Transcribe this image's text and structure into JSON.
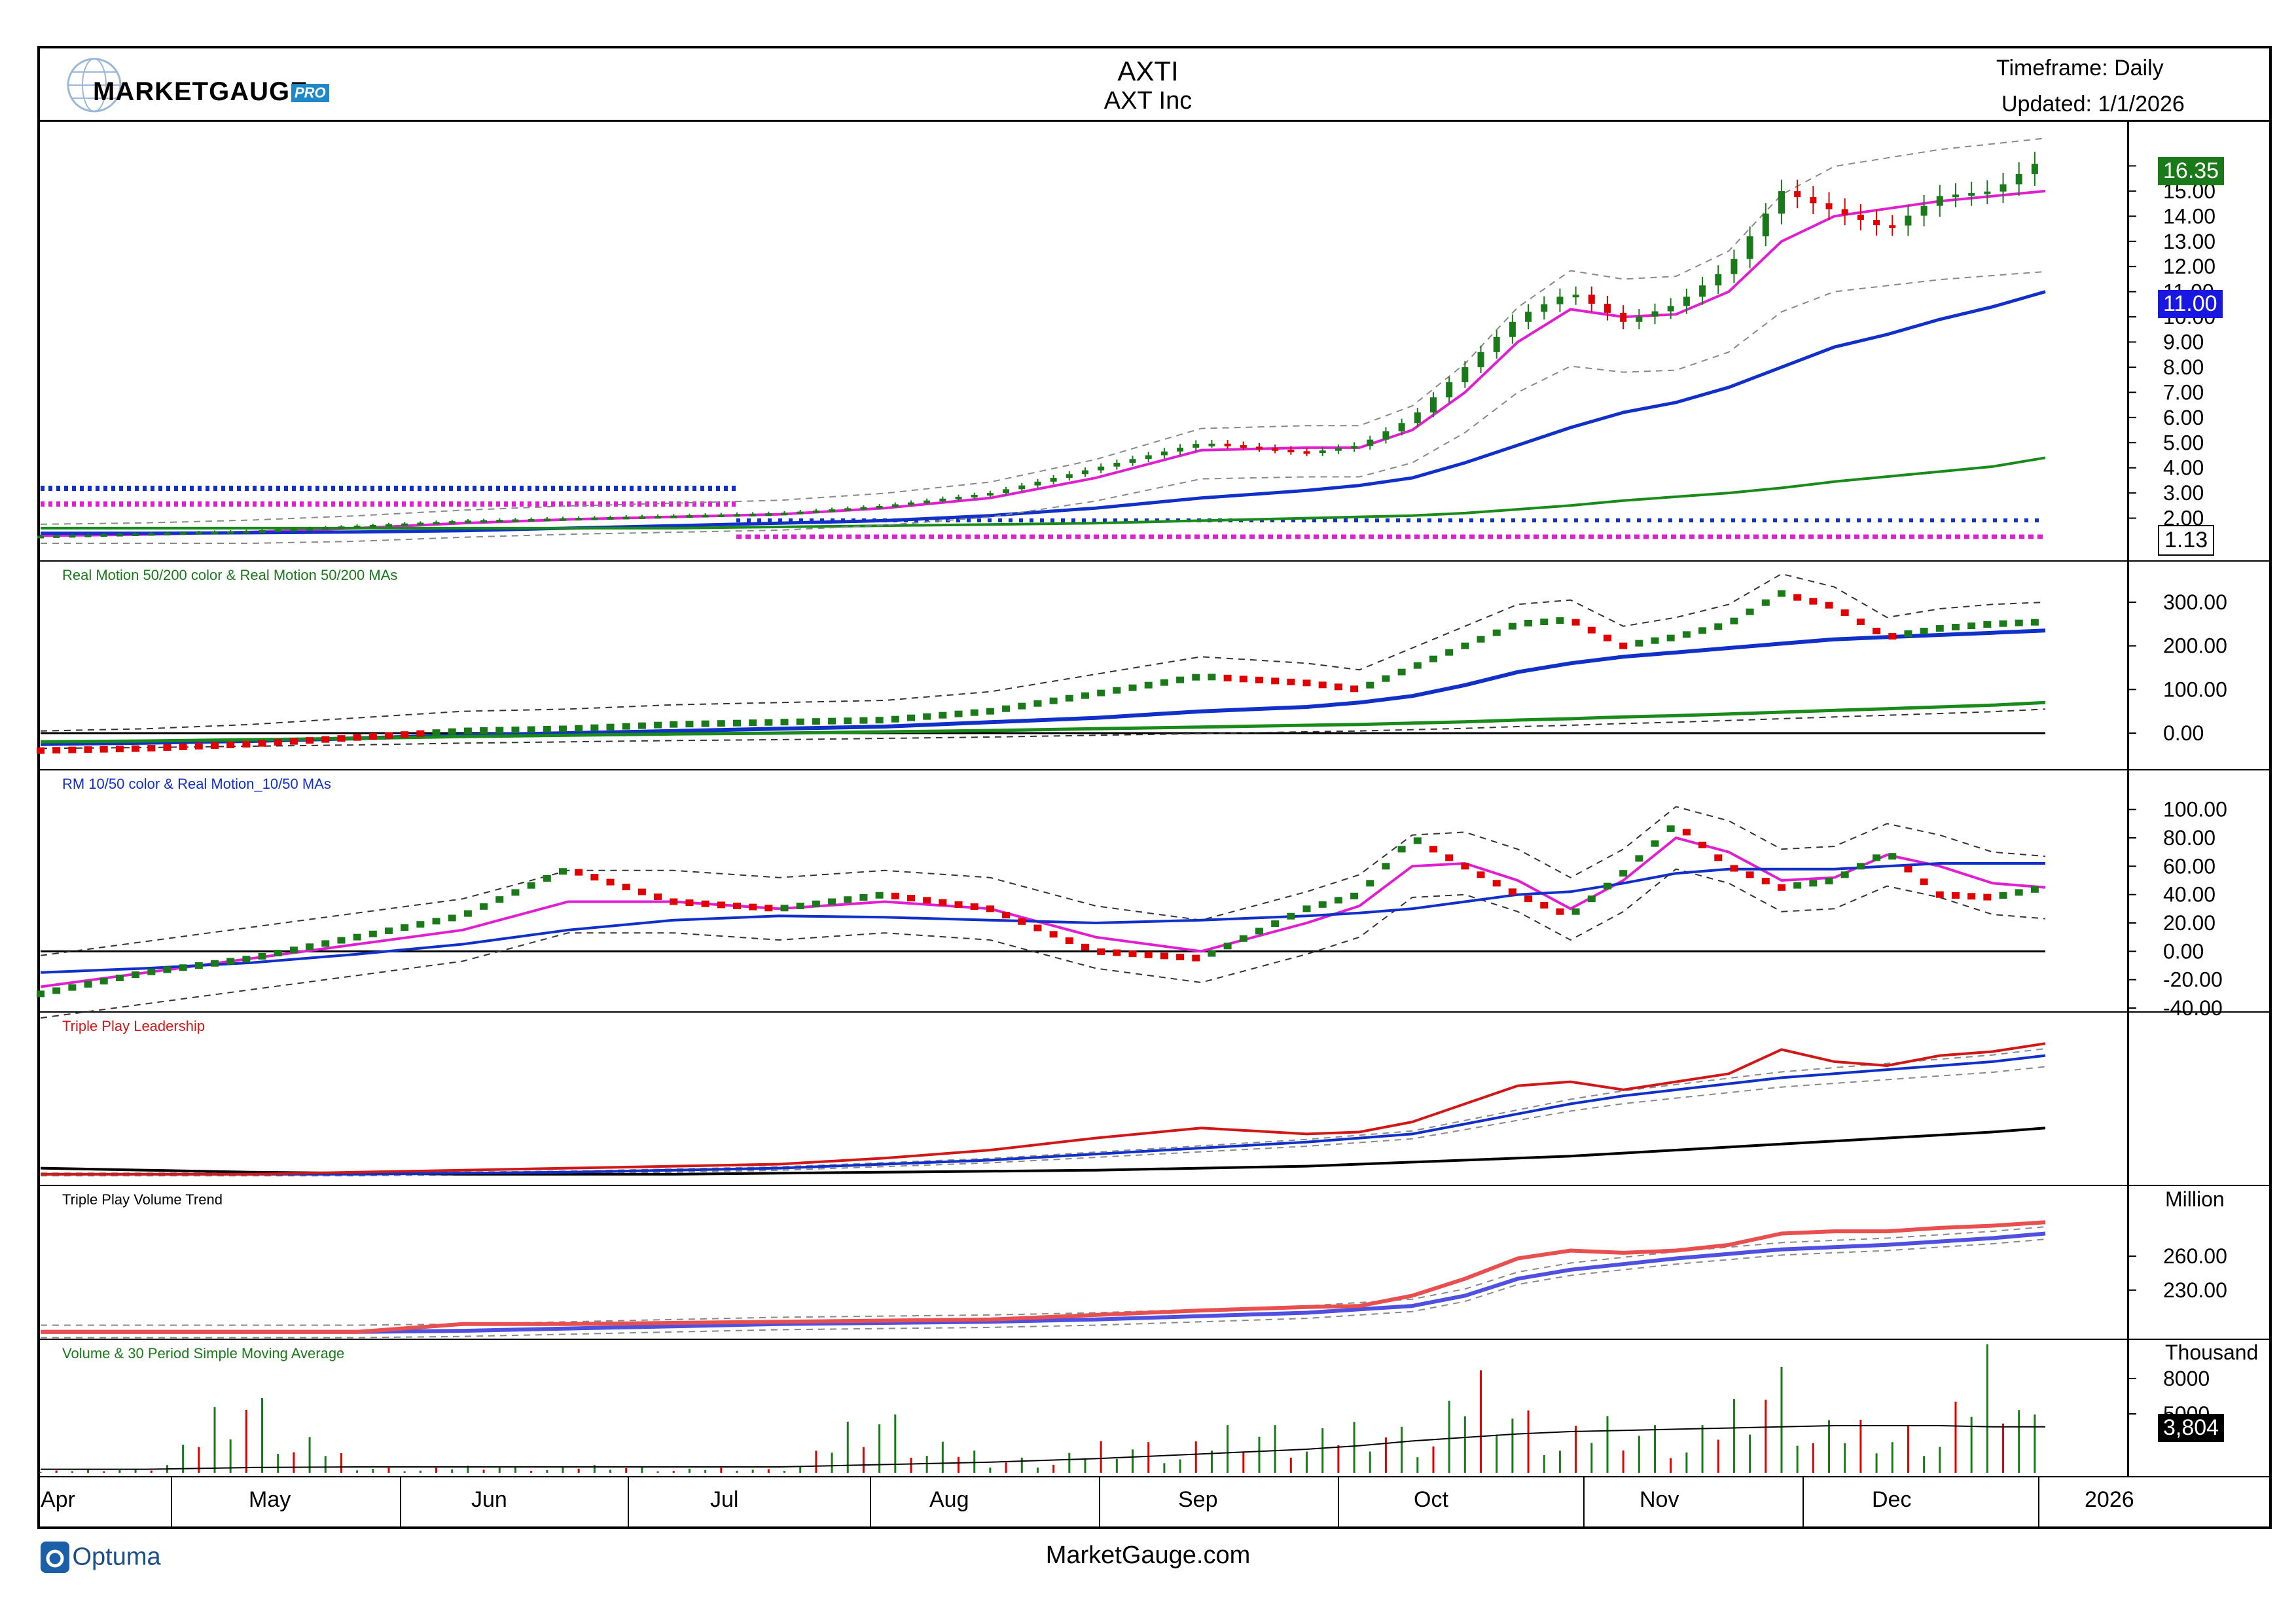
{
  "header": {
    "ticker": "AXTI",
    "company": "AXT Inc",
    "timeframe": "Timeframe: Daily",
    "updated": "Updated: 1/1/2026",
    "logo_market": "MARKETGAUGE",
    "logo_pro": "PRO"
  },
  "footer": {
    "site": "MarketGauge.com",
    "optuma": "Optuma"
  },
  "colors": {
    "up": "#1a7a1a",
    "down": "#e00000",
    "ma_pink": "#e020d0",
    "ma_blue": "#1030c8",
    "ma_green": "#1a8a1a",
    "tp_red": "#d01818",
    "vol_red": "#e85050",
    "vol_blue": "#5050e0"
  },
  "x_axis": {
    "months": [
      "Apr",
      "May",
      "Jun",
      "Jul",
      "Aug",
      "Sep",
      "Oct",
      "Nov",
      "Dec",
      "2026"
    ]
  },
  "chart_data": [
    {
      "type": "line",
      "name": "price",
      "subtype": "candlestick",
      "yticks": [
        "16.00",
        "15.00",
        "14.00",
        "13.00",
        "12.00",
        "11.00",
        "10.00",
        "9.00",
        "8.00",
        "7.00",
        "6.00",
        "5.00",
        "4.00",
        "3.00",
        "2.00"
      ],
      "ylim": [
        1.0,
        17.0
      ],
      "badges": {
        "last": "16.35",
        "ma": "11.00",
        "low": "1.13"
      },
      "x": [
        0,
        10,
        20,
        30,
        40,
        50,
        60,
        70,
        80,
        90,
        100,
        110,
        120,
        125,
        130,
        135,
        140,
        145,
        150,
        155,
        160,
        165,
        170,
        175,
        180,
        185,
        190
      ],
      "close": [
        1.3,
        1.4,
        1.5,
        1.7,
        1.9,
        2.0,
        2.1,
        2.2,
        2.5,
        3.0,
        4.0,
        5.0,
        4.6,
        4.9,
        6.0,
        8.0,
        10.0,
        11.0,
        9.8,
        10.5,
        12.0,
        15.0,
        14.2,
        13.5,
        14.8,
        15.0,
        16.35
      ],
      "series": [
        {
          "name": "10 MA",
          "values": [
            1.3,
            1.35,
            1.45,
            1.6,
            1.8,
            1.95,
            2.05,
            2.15,
            2.4,
            2.8,
            3.6,
            4.7,
            4.8,
            4.8,
            5.5,
            7.0,
            9.0,
            10.3,
            10.0,
            10.1,
            11.0,
            13.0,
            14.0,
            14.3,
            14.6,
            14.8,
            15.0
          ]
        },
        {
          "name": "50 MA",
          "values": [
            1.4,
            1.4,
            1.42,
            1.45,
            1.5,
            1.6,
            1.7,
            1.8,
            1.9,
            2.1,
            2.4,
            2.8,
            3.1,
            3.3,
            3.6,
            4.2,
            4.9,
            5.6,
            6.2,
            6.6,
            7.2,
            8.0,
            8.8,
            9.3,
            9.9,
            10.4,
            11.0
          ]
        },
        {
          "name": "200 MA",
          "values": [
            1.6,
            1.6,
            1.6,
            1.6,
            1.6,
            1.6,
            1.6,
            1.65,
            1.7,
            1.75,
            1.8,
            1.9,
            2.0,
            2.05,
            2.1,
            2.2,
            2.35,
            2.5,
            2.7,
            2.85,
            3.0,
            3.2,
            3.45,
            3.65,
            3.85,
            4.05,
            4.4
          ]
        }
      ]
    },
    {
      "type": "line",
      "name": "Real Motion 50/200 color & Real Motion 50/200 MAs",
      "yticks": [
        "300.00",
        "200.00",
        "100.00",
        "0.00"
      ],
      "ylim": [
        -60,
        360
      ],
      "x": [
        0,
        10,
        20,
        30,
        40,
        50,
        60,
        70,
        80,
        90,
        100,
        110,
        120,
        125,
        130,
        135,
        140,
        145,
        150,
        155,
        160,
        165,
        170,
        175,
        180,
        185,
        190
      ],
      "series": [
        {
          "name": "Real Motion",
          "values": [
            -40,
            -35,
            -25,
            -10,
            5,
            10,
            20,
            25,
            30,
            50,
            90,
            130,
            115,
            100,
            150,
            200,
            250,
            260,
            200,
            220,
            250,
            320,
            290,
            220,
            240,
            250,
            255
          ]
        },
        {
          "name": "50 MA",
          "values": [
            -25,
            -22,
            -18,
            -12,
            -5,
            0,
            5,
            10,
            15,
            25,
            35,
            50,
            60,
            70,
            85,
            110,
            140,
            160,
            175,
            185,
            195,
            205,
            215,
            220,
            225,
            230,
            235
          ]
        },
        {
          "name": "200 MA",
          "values": [
            -20,
            -18,
            -15,
            -12,
            -8,
            -5,
            -2,
            0,
            3,
            6,
            10,
            14,
            18,
            20,
            23,
            26,
            30,
            33,
            37,
            40,
            44,
            48,
            52,
            56,
            60,
            64,
            70
          ]
        }
      ]
    },
    {
      "type": "line",
      "name": "RM 10/50 color & Real Motion_10/50 MAs",
      "yticks": [
        "100.00",
        "80.00",
        "60.00",
        "40.00",
        "20.00",
        "0.00",
        "-20.00",
        "-40.00"
      ],
      "ylim": [
        -40,
        110
      ],
      "x": [
        0,
        10,
        20,
        30,
        40,
        50,
        60,
        70,
        80,
        90,
        100,
        110,
        120,
        125,
        130,
        135,
        140,
        145,
        150,
        155,
        160,
        165,
        170,
        175,
        180,
        185,
        190
      ],
      "series": [
        {
          "name": "RM 10/50",
          "values": [
            -30,
            -15,
            -5,
            10,
            25,
            58,
            35,
            30,
            40,
            30,
            0,
            -5,
            30,
            40,
            80,
            60,
            40,
            25,
            55,
            90,
            60,
            45,
            50,
            70,
            40,
            38,
            45
          ]
        },
        {
          "name": "10 MA",
          "values": [
            -25,
            -15,
            -5,
            5,
            15,
            35,
            35,
            30,
            35,
            30,
            10,
            0,
            20,
            32,
            60,
            62,
            50,
            30,
            50,
            80,
            70,
            50,
            52,
            68,
            60,
            48,
            45
          ]
        },
        {
          "name": "50 MA",
          "values": [
            -15,
            -12,
            -8,
            -2,
            5,
            15,
            22,
            25,
            24,
            22,
            20,
            22,
            25,
            27,
            30,
            35,
            40,
            42,
            48,
            55,
            58,
            58,
            58,
            60,
            62,
            62,
            62
          ]
        }
      ]
    },
    {
      "type": "line",
      "name": "Triple Play Leadership",
      "yticks": [],
      "x": [
        0,
        10,
        20,
        30,
        40,
        50,
        60,
        70,
        80,
        90,
        100,
        110,
        120,
        125,
        130,
        135,
        140,
        145,
        150,
        155,
        160,
        165,
        170,
        175,
        180,
        185,
        190
      ],
      "series": [
        {
          "name": "Leadership",
          "values": [
            1,
            1,
            1,
            1.1,
            1.2,
            1.3,
            1.4,
            1.5,
            1.8,
            2.2,
            2.8,
            3.3,
            3.0,
            3.1,
            3.6,
            4.5,
            5.4,
            5.6,
            5.2,
            5.6,
            6.0,
            7.2,
            6.6,
            6.4,
            6.9,
            7.1,
            7.5
          ]
        },
        {
          "name": "MA",
          "values": [
            1,
            1,
            1,
            1,
            1.05,
            1.1,
            1.2,
            1.3,
            1.5,
            1.7,
            2.0,
            2.3,
            2.6,
            2.8,
            3.0,
            3.5,
            4.0,
            4.5,
            4.9,
            5.2,
            5.5,
            5.8,
            6.0,
            6.2,
            6.4,
            6.6,
            6.9
          ]
        },
        {
          "name": "Long MA",
          "values": [
            1.3,
            1.2,
            1.1,
            1.05,
            1.0,
            1.0,
            1.0,
            1.05,
            1.1,
            1.15,
            1.2,
            1.3,
            1.4,
            1.5,
            1.6,
            1.7,
            1.8,
            1.9,
            2.05,
            2.2,
            2.35,
            2.5,
            2.65,
            2.8,
            2.95,
            3.1,
            3.3
          ]
        }
      ]
    },
    {
      "type": "line",
      "name": "Triple Play Volume Trend",
      "yunit": "Million",
      "yticks": [
        "260.00",
        "230.00"
      ],
      "ylim": [
        190,
        300
      ],
      "x": [
        0,
        10,
        20,
        30,
        40,
        50,
        60,
        70,
        80,
        90,
        100,
        110,
        120,
        125,
        130,
        135,
        140,
        145,
        150,
        155,
        160,
        165,
        170,
        175,
        180,
        185,
        190
      ],
      "series": [
        {
          "name": "Volume Trend",
          "values": [
            193,
            193,
            193,
            193,
            200,
            200,
            201,
            202,
            203,
            204,
            208,
            212,
            215,
            216,
            225,
            240,
            258,
            265,
            263,
            265,
            270,
            280,
            282,
            282,
            285,
            287,
            290
          ]
        },
        {
          "name": "MA",
          "values": [
            193,
            193,
            193,
            193,
            194,
            196,
            198,
            200,
            201,
            202,
            204,
            207,
            210,
            213,
            216,
            225,
            240,
            248,
            253,
            258,
            262,
            266,
            268,
            270,
            273,
            276,
            280
          ]
        }
      ]
    },
    {
      "type": "bar",
      "name": "Volume & 30 Period Simple Moving Average",
      "yunit": "Thousand",
      "yticks": [
        "8000",
        "5000"
      ],
      "ylim": [
        0,
        10000
      ],
      "last_value": "3,804",
      "x": [
        0,
        10,
        20,
        30,
        40,
        50,
        60,
        70,
        80,
        90,
        100,
        110,
        120,
        125,
        130,
        135,
        140,
        145,
        150,
        155,
        160,
        165,
        170,
        175,
        180,
        185,
        190
      ],
      "values": [
        200,
        300,
        7000,
        400,
        500,
        600,
        400,
        300,
        5400,
        900,
        2200,
        3000,
        4500,
        3500,
        4000,
        8000,
        5500,
        4500,
        3800,
        4200,
        4800,
        9000,
        4500,
        3000,
        5500,
        9500,
        3804
      ],
      "sma": [
        300,
        300,
        450,
        500,
        500,
        500,
        500,
        500,
        700,
        900,
        1200,
        1600,
        2000,
        2300,
        2700,
        3000,
        3300,
        3500,
        3600,
        3700,
        3800,
        3900,
        4000,
        4000,
        4000,
        3900,
        3900
      ]
    }
  ]
}
